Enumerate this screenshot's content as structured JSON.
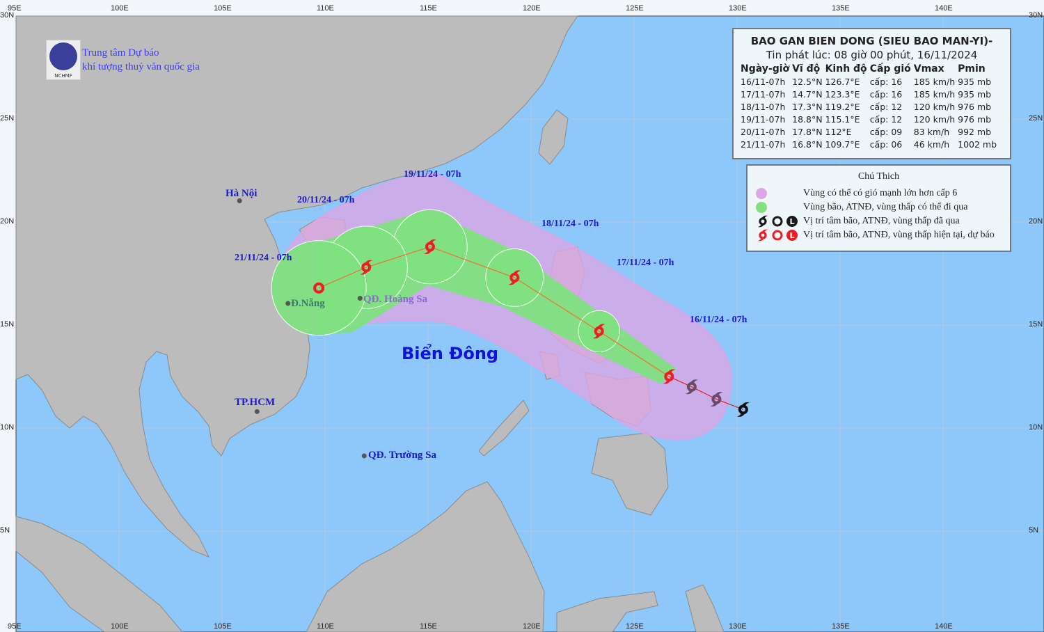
{
  "agency": {
    "line1": "Trung tâm Dự báo",
    "line2": "khí tượng thuỷ văn quốc gia",
    "logo_text": "NCHMF"
  },
  "info": {
    "title": "BAO GAN BIEN DONG (SIEU BAO MAN-YI)-",
    "issued": "Tin phát lúc: 08 giờ 00 phút, 16/11/2024",
    "headers": [
      "Ngày-giờ",
      "Vĩ độ",
      "Kinh độ",
      "Cấp gió",
      "Vmax",
      "Pmin"
    ],
    "rows": [
      [
        "16/11-07h",
        "12.5°N",
        "126.7°E",
        "cấp: 16",
        "185 km/h",
        "935 mb"
      ],
      [
        "17/11-07h",
        "14.7°N",
        "123.3°E",
        "cấp: 16",
        "185 km/h",
        "935 mb"
      ],
      [
        "18/11-07h",
        "17.3°N",
        "119.2°E",
        "cấp: 12",
        "120 km/h",
        "976 mb"
      ],
      [
        "19/11-07h",
        "18.8°N",
        "115.1°E",
        "cấp: 12",
        "120 km/h",
        "976 mb"
      ],
      [
        "20/11-07h",
        "17.8°N",
        "112°E",
        "cấp: 09",
        "83 km/h",
        "992 mb"
      ],
      [
        "21/11-07h",
        "16.8°N",
        "109.7°E",
        "cấp: 06",
        "46 km/h",
        "1002 mb"
      ]
    ]
  },
  "legend": {
    "title": "Chú Thich",
    "items": [
      {
        "label": "Vùng có thể có gió mạnh lớn hơn cấp 6",
        "color": "#dba6e6"
      },
      {
        "label": "Vùng bão, ATNĐ, vùng thấp có thể đi qua",
        "color": "#80e080"
      },
      {
        "label": "Vị trí tâm bão, ATNĐ, vùng thấp đã qua",
        "color": "#1a1a1a"
      },
      {
        "label": "Vị trí tâm bão, ATNĐ, vùng thấp hiện tại, dự báo",
        "color": "#ee1c24"
      }
    ]
  },
  "map": {
    "sea_label": "Biển Đông",
    "time_labels": [
      "16/11/24 - 07h",
      "17/11/24 - 07h",
      "18/11/24 - 07h",
      "19/11/24 - 07h",
      "20/11/24 - 07h",
      "21/11/24 - 07h"
    ],
    "places": [
      "Hà Nội",
      "Đ.Nẵng",
      "QĐ. Hoàng Sa",
      "TP.HCM",
      "QĐ. Trường Sa"
    ],
    "past_track": [
      {
        "lat": 12.0,
        "lon": 127.8
      },
      {
        "lat": 11.4,
        "lon": 129.0
      },
      {
        "lat": 10.9,
        "lon": 130.3
      }
    ],
    "lon_labels": [
      "95E",
      "100E",
      "105E",
      "110E",
      "115E",
      "120E",
      "125E",
      "130E",
      "135E",
      "140E"
    ],
    "lat_labels": [
      "30N",
      "25N",
      "20N",
      "15N",
      "10N",
      "5N"
    ],
    "colors": {
      "ocean": "#8ec8fa",
      "land": "#bcbcbc",
      "wind_zone": "#dba6e6",
      "storm_zone": "#80e080",
      "forecast": "#ee1c24",
      "past": "#1a1a1a"
    }
  }
}
